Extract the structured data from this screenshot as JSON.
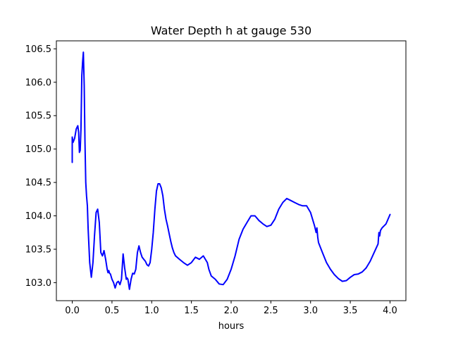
{
  "chart_data": {
    "type": "line",
    "title": "Water Depth h at gauge 530",
    "xlabel": "hours",
    "ylabel": "",
    "xlim": [
      -0.2,
      4.2
    ],
    "ylim": [
      102.73,
      106.62
    ],
    "xticks": [
      0.0,
      0.5,
      1.0,
      1.5,
      2.0,
      2.5,
      3.0,
      3.5,
      4.0
    ],
    "xtick_labels": [
      "0.0",
      "0.5",
      "1.0",
      "1.5",
      "2.0",
      "2.5",
      "3.0",
      "3.5",
      "4.0"
    ],
    "yticks": [
      103.0,
      103.5,
      104.0,
      104.5,
      105.0,
      105.5,
      106.0,
      106.5
    ],
    "ytick_labels": [
      "103.0",
      "103.5",
      "104.0",
      "104.5",
      "105.0",
      "105.5",
      "106.0",
      "106.5"
    ],
    "grid": false,
    "legend": false,
    "series": [
      {
        "color": "#0000ff",
        "x": [
          0.0,
          0.0,
          0.01,
          0.03,
          0.05,
          0.07,
          0.08,
          0.09,
          0.1,
          0.11,
          0.12,
          0.13,
          0.14,
          0.15,
          0.16,
          0.17,
          0.18,
          0.19,
          0.2,
          0.22,
          0.24,
          0.26,
          0.28,
          0.3,
          0.32,
          0.34,
          0.36,
          0.38,
          0.4,
          0.42,
          0.44,
          0.45,
          0.46,
          0.47,
          0.48,
          0.5,
          0.52,
          0.54,
          0.56,
          0.58,
          0.6,
          0.62,
          0.64,
          0.66,
          0.68,
          0.69,
          0.7,
          0.72,
          0.74,
          0.76,
          0.78,
          0.8,
          0.82,
          0.84,
          0.86,
          0.88,
          0.9,
          0.92,
          0.94,
          0.96,
          0.98,
          1.0,
          1.02,
          1.04,
          1.06,
          1.08,
          1.1,
          1.12,
          1.14,
          1.16,
          1.18,
          1.2,
          1.22,
          1.24,
          1.26,
          1.28,
          1.3,
          1.35,
          1.4,
          1.45,
          1.5,
          1.55,
          1.6,
          1.65,
          1.7,
          1.72,
          1.75,
          1.8,
          1.85,
          1.9,
          1.95,
          2.0,
          2.05,
          2.1,
          2.15,
          2.2,
          2.25,
          2.3,
          2.35,
          2.4,
          2.45,
          2.5,
          2.55,
          2.6,
          2.65,
          2.7,
          2.75,
          2.8,
          2.85,
          2.9,
          2.95,
          3.0,
          3.05,
          3.07,
          3.08,
          3.09,
          3.1,
          3.15,
          3.2,
          3.25,
          3.3,
          3.35,
          3.4,
          3.45,
          3.5,
          3.55,
          3.6,
          3.65,
          3.7,
          3.75,
          3.8,
          3.85,
          3.86,
          3.87,
          3.88,
          3.9,
          3.95,
          4.0
        ],
        "y": [
          104.8,
          105.18,
          105.1,
          105.16,
          105.3,
          105.35,
          105.25,
          104.95,
          104.98,
          105.3,
          106.1,
          106.3,
          106.45,
          105.95,
          105.1,
          104.5,
          104.3,
          104.15,
          103.8,
          103.3,
          103.08,
          103.3,
          103.7,
          104.05,
          104.1,
          103.9,
          103.45,
          103.4,
          103.48,
          103.35,
          103.2,
          103.15,
          103.18,
          103.14,
          103.13,
          103.05,
          103.0,
          102.92,
          103.0,
          103.02,
          102.97,
          103.05,
          103.43,
          103.22,
          103.05,
          103.07,
          103.05,
          102.9,
          103.05,
          103.14,
          103.13,
          103.2,
          103.45,
          103.55,
          103.45,
          103.38,
          103.35,
          103.32,
          103.27,
          103.25,
          103.3,
          103.5,
          103.75,
          104.1,
          104.37,
          104.48,
          104.48,
          104.42,
          104.3,
          104.1,
          103.95,
          103.85,
          103.73,
          103.62,
          103.52,
          103.45,
          103.4,
          103.35,
          103.3,
          103.26,
          103.3,
          103.38,
          103.35,
          103.4,
          103.3,
          103.2,
          103.1,
          103.05,
          102.98,
          102.97,
          103.05,
          103.2,
          103.4,
          103.65,
          103.8,
          103.9,
          104.0,
          104.0,
          103.93,
          103.88,
          103.84,
          103.86,
          103.95,
          104.1,
          104.2,
          104.26,
          104.23,
          104.2,
          104.17,
          104.15,
          104.15,
          104.05,
          103.85,
          103.75,
          103.82,
          103.68,
          103.6,
          103.45,
          103.3,
          103.2,
          103.12,
          103.06,
          103.02,
          103.03,
          103.08,
          103.12,
          103.13,
          103.16,
          103.22,
          103.32,
          103.45,
          103.58,
          103.75,
          103.7,
          103.78,
          103.82,
          103.88,
          104.02
        ]
      }
    ]
  }
}
